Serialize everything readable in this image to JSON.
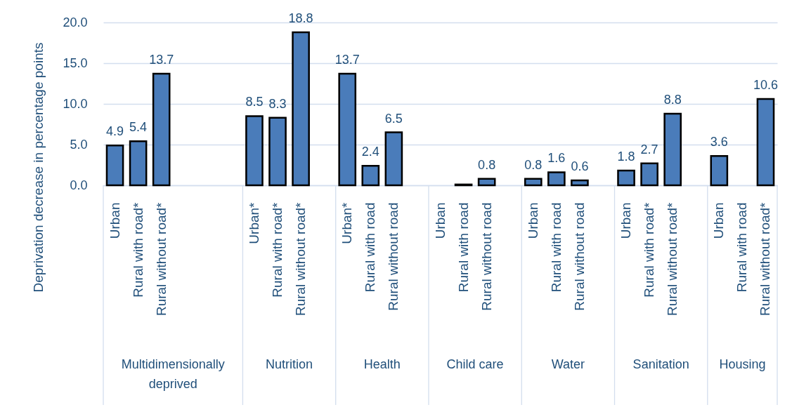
{
  "chart_data": {
    "type": "bar",
    "ylabel": "Deprivation decrease in percentage points",
    "categories": [
      "Urban",
      "Rural with road*",
      "Rural without road*",
      null,
      null,
      null,
      "Urban*",
      "Rural with road*",
      "Rural without road*",
      null,
      "Urban*",
      "Rural with road",
      "Rural without road",
      null,
      "Urban",
      "Rural with road",
      "Rural without road",
      null,
      "Urban",
      "Rural with road",
      "Rural without road",
      null,
      "Urban",
      "Rural with road*",
      "Rural without road*",
      null,
      "Urban",
      "Rural with road",
      "Rural without road*"
    ],
    "values": [
      4.9,
      5.4,
      13.7,
      null,
      null,
      null,
      8.5,
      8.3,
      18.8,
      null,
      13.7,
      2.4,
      6.5,
      null,
      null,
      0.1,
      0.8,
      null,
      0.8,
      1.6,
      0.6,
      null,
      1.8,
      2.7,
      8.8,
      null,
      3.6,
      null,
      10.6
    ],
    "value_labels": [
      "4.9",
      "5.4",
      "13.7",
      null,
      null,
      null,
      "8.5",
      "8.3",
      "18.8",
      null,
      "13.7",
      "2.4",
      "6.5",
      null,
      null,
      null,
      "0.8",
      null,
      "0.8",
      "1.6",
      "0.6",
      null,
      "1.8",
      "2.7",
      "8.8",
      null,
      "3.6",
      null,
      "10.6"
    ],
    "color": "#4a7cba",
    "ylim": [
      0,
      20
    ],
    "yticks": [
      {
        "value": 0,
        "label": "0.0"
      },
      {
        "value": 5,
        "label": "5.0"
      },
      {
        "value": 10,
        "label": "10.0"
      },
      {
        "value": 15,
        "label": "15.0"
      },
      {
        "value": 20,
        "label": "20.0"
      }
    ],
    "grid": "y",
    "annotations": [
      "Multidimensionally deprived",
      "Nutrition",
      "Health",
      "Child care",
      "Water",
      "Sanitation",
      "Housing"
    ]
  }
}
